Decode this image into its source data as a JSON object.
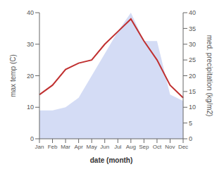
{
  "chart_data": {
    "type": "line",
    "xlabel": "date (month)",
    "ylabel": "max temp (C)",
    "y2label": "med. precipitation (kg/m2)",
    "categories": [
      "Jan",
      "Feb",
      "Mar",
      "Apr",
      "May",
      "Jun",
      "Jul",
      "Aug",
      "Sep",
      "Oct",
      "Nov",
      "Dec"
    ],
    "series": [
      {
        "type": "area",
        "axis": "y2",
        "color": "#b8c4ee",
        "values": [
          9,
          9,
          10,
          13,
          20,
          27,
          34,
          40,
          31,
          31,
          14,
          12
        ]
      },
      {
        "type": "line",
        "axis": "y",
        "color": "#c03030",
        "values": [
          14,
          17,
          22,
          24,
          25,
          30,
          34,
          38,
          31,
          25,
          17,
          13
        ]
      }
    ],
    "ylim": [
      0,
      40
    ],
    "yticks": [
      0,
      10,
      20,
      30,
      40
    ],
    "y2lim": [
      0,
      40
    ],
    "y2ticks": [
      0,
      5,
      10,
      15,
      20,
      25,
      30,
      35,
      40
    ],
    "grid": false
  }
}
